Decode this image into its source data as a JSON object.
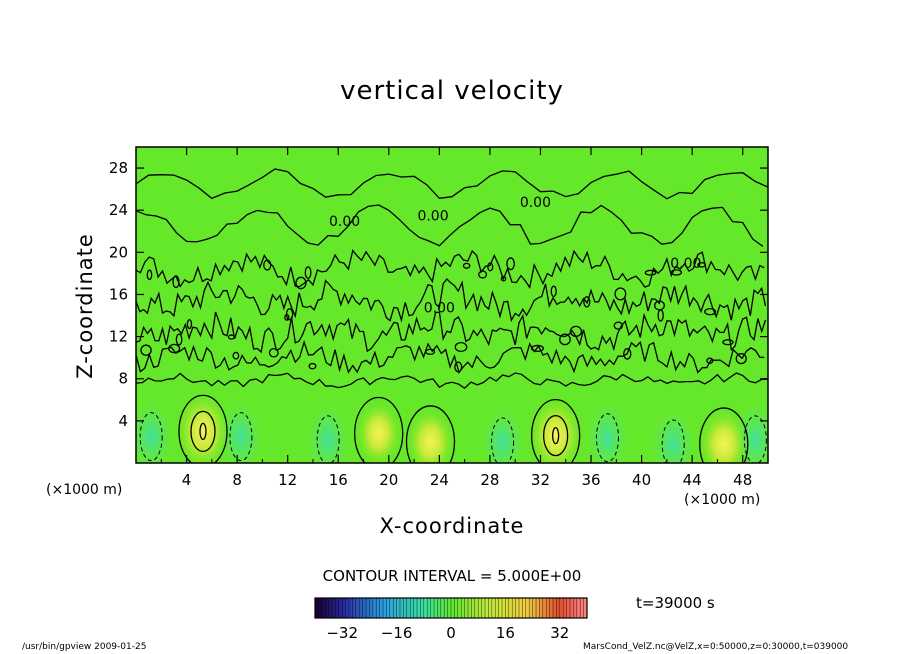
{
  "chart_data": {
    "type": "heatmap",
    "title": "vertical velocity",
    "xlabel": "X-coordinate",
    "ylabel": "Z-coordinate",
    "x_unit_left": "(×1000 m)",
    "x_unit_right": "(×1000 m)",
    "xlim": [
      0,
      50
    ],
    "ylim": [
      0,
      30
    ],
    "x_ticks": [
      4,
      8,
      12,
      16,
      20,
      24,
      28,
      32,
      36,
      40,
      44,
      48
    ],
    "y_ticks": [
      4,
      8,
      12,
      16,
      20,
      24,
      28
    ],
    "contour_labels": [
      {
        "x": 16.5,
        "y": 22.5,
        "text": "0.00"
      },
      {
        "x": 23.5,
        "y": 23.0,
        "text": "0.00"
      },
      {
        "x": 31.6,
        "y": 24.3,
        "text": "0.00"
      },
      {
        "x": 24.0,
        "y": 14.3,
        "text": "0.00"
      },
      {
        "x": 43.5,
        "y": 18.5,
        "text": "0.00"
      }
    ],
    "updraft_cells": [
      {
        "x": 5.3,
        "y": 3.0,
        "strength": 1.0
      },
      {
        "x": 33.2,
        "y": 2.6,
        "strength": 1.0
      },
      {
        "x": 23.3,
        "y": 2.0,
        "strength": 0.6
      },
      {
        "x": 46.5,
        "y": 1.8,
        "strength": 0.7
      },
      {
        "x": 19.2,
        "y": 2.8,
        "strength": 0.5
      }
    ],
    "downdraft_cells": [
      {
        "x": 1.2,
        "y": 2.5
      },
      {
        "x": 8.3,
        "y": 2.5
      },
      {
        "x": 15.2,
        "y": 2.2
      },
      {
        "x": 29.0,
        "y": 2.0
      },
      {
        "x": 37.3,
        "y": 2.4
      },
      {
        "x": 42.5,
        "y": 1.8
      },
      {
        "x": 49.0,
        "y": 2.2
      }
    ],
    "contour_interval_text": "CONTOUR INTERVAL = 5.000E+00",
    "colorbar": {
      "ticks": [
        "−32",
        "−16",
        "0",
        "16",
        "32"
      ],
      "min": -40,
      "max": 40
    },
    "time_label": "t=39000 s"
  },
  "footer": {
    "left": "/usr/bin/gpview   2009-01-25",
    "right": "MarsCond_VelZ.nc@VelZ,x=0:50000,z=0:30000,t=039000"
  }
}
